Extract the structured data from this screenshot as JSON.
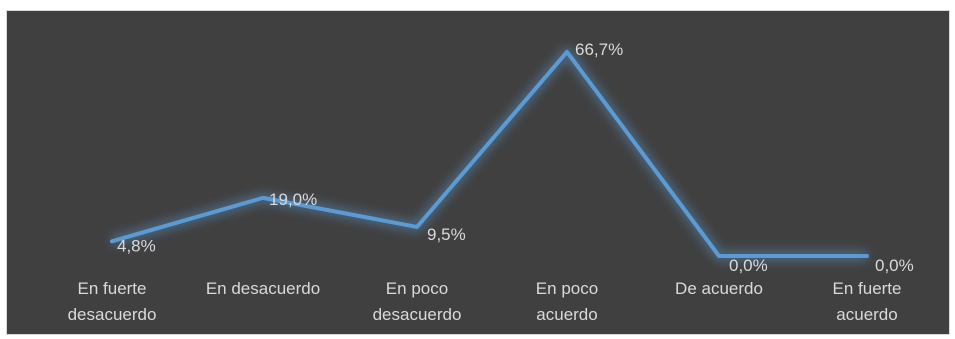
{
  "chart_data": {
    "type": "line",
    "title": "",
    "xlabel": "",
    "ylabel": "",
    "categories": [
      [
        "En fuerte",
        "desacuerdo"
      ],
      [
        "En desacuerdo"
      ],
      [
        "En poco",
        "desacuerdo"
      ],
      [
        "En poco",
        "acuerdo"
      ],
      [
        "De acuerdo"
      ],
      [
        "En fuerte",
        "acuerdo"
      ]
    ],
    "series": [
      {
        "values": [
          4.8,
          19.0,
          9.5,
          66.7,
          0.0,
          0.0
        ],
        "labels": [
          "4,8%",
          "19,0%",
          "9,5%",
          "66,7%",
          "0,0%",
          "0,0%"
        ]
      }
    ],
    "ylim": [
      0,
      70
    ],
    "grid": false,
    "legend": "none",
    "colors": {
      "background": "#404040",
      "line": "#5b9bd5",
      "glow": "#5b9bd5",
      "text": "#d9d9d9"
    }
  }
}
